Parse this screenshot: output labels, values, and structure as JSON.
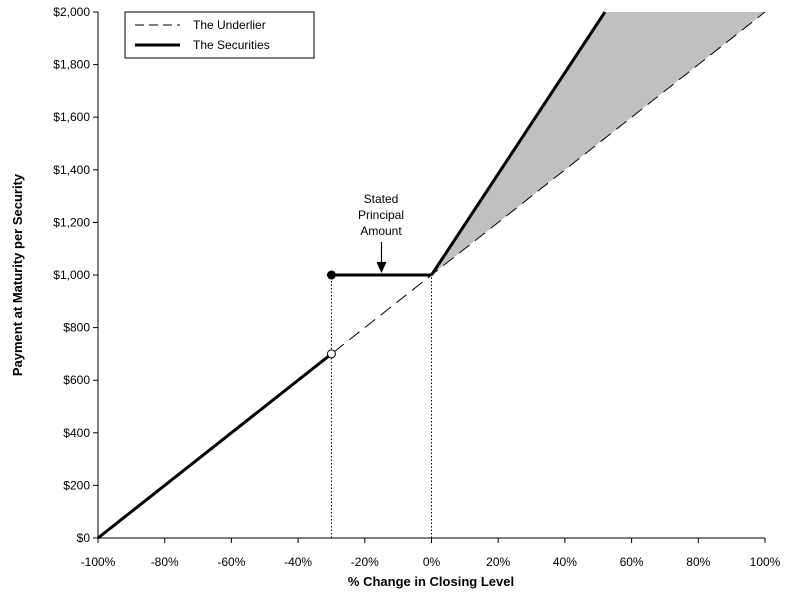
{
  "chart_data": {
    "type": "line",
    "title": "",
    "xlabel": "% Change in Closing Level",
    "ylabel": "Payment at Maturity per Security",
    "xlim": [
      -100,
      100
    ],
    "ylim": [
      0,
      2000
    ],
    "x_ticks": [
      -100,
      -80,
      -60,
      -40,
      -20,
      0,
      20,
      40,
      60,
      80,
      100
    ],
    "x_tick_labels": [
      "-100%",
      "-80%",
      "-60%",
      "-40%",
      "-20%",
      "0%",
      "20%",
      "40%",
      "60%",
      "80%",
      "100%"
    ],
    "y_ticks": [
      0,
      200,
      400,
      600,
      800,
      1000,
      1200,
      1400,
      1600,
      1800,
      2000
    ],
    "y_tick_labels": [
      "$0",
      "$200",
      "$400",
      "$600",
      "$800",
      "$1,000",
      "$1,200",
      "$1,400",
      "$1,600",
      "$1,800",
      "$2,000"
    ],
    "grid": false,
    "legend_position": "top-left",
    "series": [
      {
        "name": "The Underlier",
        "style": "dashed",
        "color": "#000000",
        "points": [
          [
            -100,
            0
          ],
          [
            100,
            2000
          ]
        ]
      },
      {
        "name": "The Securities",
        "style": "solid",
        "color": "#000000",
        "segments": [
          [
            [
              -100,
              0
            ],
            [
              -30,
              700
            ]
          ],
          [
            [
              -30,
              1000
            ],
            [
              0,
              1000
            ]
          ],
          [
            [
              0,
              1000
            ],
            [
              52,
              2000
            ]
          ]
        ]
      }
    ],
    "shaded_region": {
      "color": "#c0c0c0",
      "points": [
        [
          0,
          1000
        ],
        [
          52,
          2000
        ],
        [
          100,
          2000
        ]
      ]
    },
    "markers": [
      {
        "x": -30,
        "y": 1000,
        "fill": "filled"
      },
      {
        "x": -30,
        "y": 700,
        "fill": "open"
      }
    ],
    "reference_lines": [
      {
        "x": -30,
        "y_from": 0,
        "y_to": 1000,
        "style": "dotted"
      },
      {
        "x": 0,
        "y_from": 0,
        "y_to": 1000,
        "style": "dotted"
      }
    ],
    "annotations": [
      {
        "lines": [
          "Stated",
          "Principal",
          "Amount"
        ],
        "arrow_to": [
          -15,
          1000
        ]
      }
    ]
  }
}
